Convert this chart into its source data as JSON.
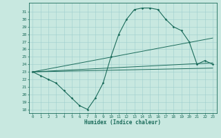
{
  "title": "",
  "xlabel": "Humidex (Indice chaleur)",
  "bg_color": "#c8e8e0",
  "line_color": "#1a6b5a",
  "grid_color": "#9ecece",
  "x_ticks": [
    0,
    1,
    2,
    3,
    4,
    5,
    6,
    7,
    8,
    9,
    10,
    11,
    12,
    13,
    14,
    15,
    16,
    17,
    18,
    19,
    20,
    21,
    22,
    23
  ],
  "ylim": [
    17.5,
    32.2
  ],
  "xlim": [
    -0.5,
    23.5
  ],
  "yticks": [
    18,
    19,
    20,
    21,
    22,
    23,
    24,
    25,
    26,
    27,
    28,
    29,
    30,
    31
  ],
  "curve1_x": [
    0,
    1,
    2,
    3,
    4,
    5,
    6,
    7,
    8,
    9,
    10,
    11,
    12,
    13,
    14,
    15,
    16,
    17,
    18,
    19,
    20,
    21,
    22,
    23
  ],
  "curve1_y": [
    23.0,
    22.5,
    22.0,
    21.5,
    20.5,
    19.5,
    18.5,
    18.0,
    19.5,
    21.5,
    25.0,
    28.0,
    30.0,
    31.3,
    31.5,
    31.5,
    31.3,
    30.0,
    29.0,
    28.5,
    27.0,
    24.0,
    24.5,
    24.0
  ],
  "line1_x": [
    0,
    23
  ],
  "line1_y": [
    23.0,
    23.5
  ],
  "line2_x": [
    0,
    23
  ],
  "line2_y": [
    23.0,
    24.2
  ],
  "line3_x": [
    0,
    23
  ],
  "line3_y": [
    23.0,
    27.5
  ],
  "figsize": [
    3.2,
    2.0
  ],
  "dpi": 100
}
